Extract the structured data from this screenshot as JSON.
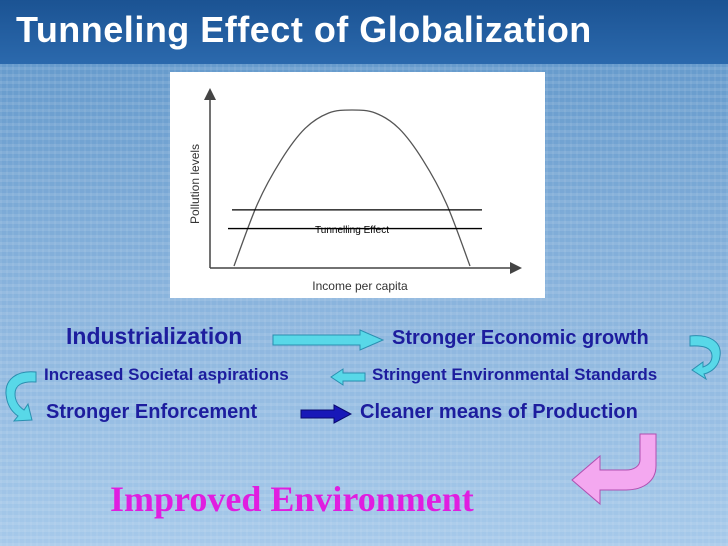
{
  "slide": {
    "title": "Tunneling Effect of Globalization"
  },
  "chart_data": {
    "type": "line",
    "title": "",
    "xlabel": "Income per capita",
    "ylabel": "Pollution levels",
    "annotations": [
      "Tunnelling Effect"
    ],
    "series": [
      {
        "values": [
          0.0,
          0.4,
          0.68,
          0.88,
          0.98,
          1.0,
          0.98,
          0.88,
          0.68,
          0.4,
          0.0
        ]
      }
    ],
    "x": [
      0,
      0.1,
      0.2,
      0.3,
      0.4,
      0.5,
      0.6,
      0.7,
      0.8,
      0.9,
      1.0
    ],
    "reference_lines": [
      0.36,
      0.24
    ],
    "grid": false
  },
  "flow": {
    "row1": {
      "left": "Industrialization",
      "right": "Stronger Economic growth"
    },
    "row2": {
      "left": "Increased Societal aspirations",
      "right": "Stringent Environmental Standards"
    },
    "row3": {
      "left": "Stronger Enforcement",
      "right": "Cleaner means of Production"
    },
    "result": "Improved Environment"
  },
  "colors": {
    "text_blue": "#1d1d9e",
    "arrow_cyan": "#58d8e8",
    "arrow_pink": "#f4a8f0",
    "result_magenta": "#e01de0",
    "title_bar": "#1b5393"
  }
}
